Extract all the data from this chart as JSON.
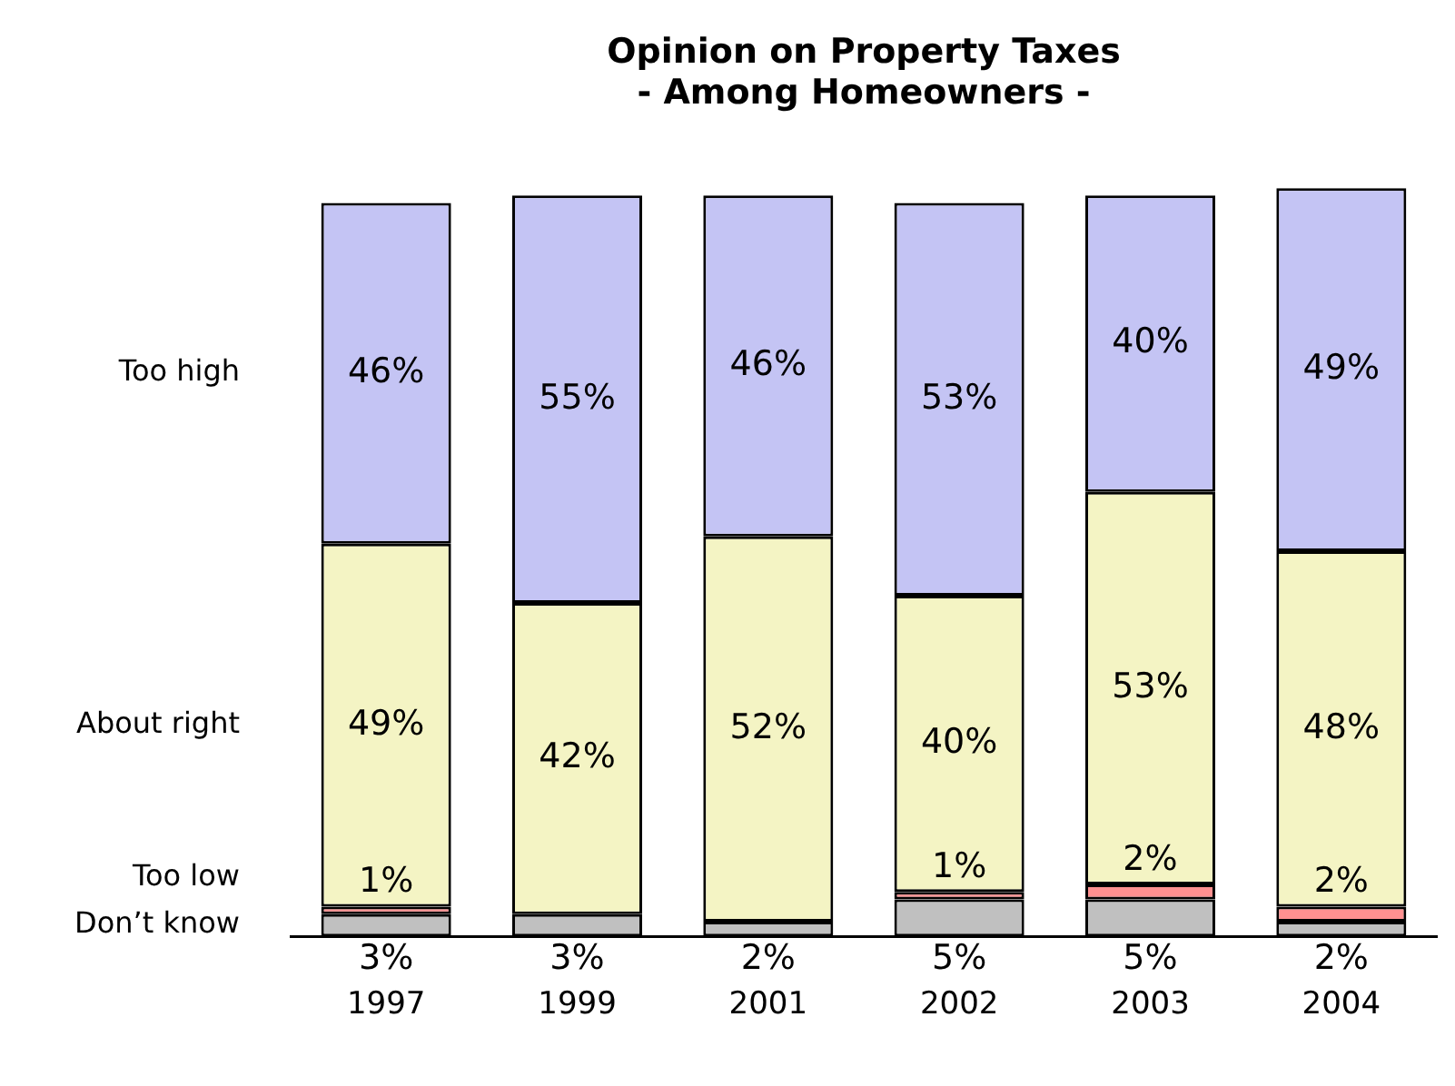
{
  "chart_data": {
    "type": "bar",
    "stacked": true,
    "title": "Opinion on Property Taxes",
    "subtitle": "- Among Homeowners -",
    "categories": [
      "1997",
      "1999",
      "2001",
      "2002",
      "2003",
      "2004"
    ],
    "series": [
      {
        "name": "Don’t know",
        "color": "#c0c0c0",
        "values": [
          3,
          3,
          2,
          5,
          5,
          2
        ],
        "value_labels": [
          "3%",
          "3%",
          "2%",
          "5%",
          "5%",
          "2%"
        ]
      },
      {
        "name": "Too low",
        "color": "#ff9090",
        "values": [
          1,
          null,
          null,
          1,
          2,
          2
        ],
        "value_labels": [
          "1%",
          null,
          null,
          "1%",
          "2%",
          "2%"
        ]
      },
      {
        "name": "About right",
        "color": "#f4f4c4",
        "values": [
          49,
          42,
          52,
          40,
          53,
          48
        ],
        "value_labels": [
          "49%",
          "42%",
          "52%",
          "40%",
          "53%",
          "48%"
        ]
      },
      {
        "name": "Too high",
        "color": "#c4c4f4",
        "values": [
          46,
          55,
          46,
          53,
          40,
          49
        ],
        "value_labels": [
          "46%",
          "55%",
          "46%",
          "53%",
          "40%",
          "49%"
        ]
      }
    ],
    "legend": "left",
    "grid": false
  }
}
